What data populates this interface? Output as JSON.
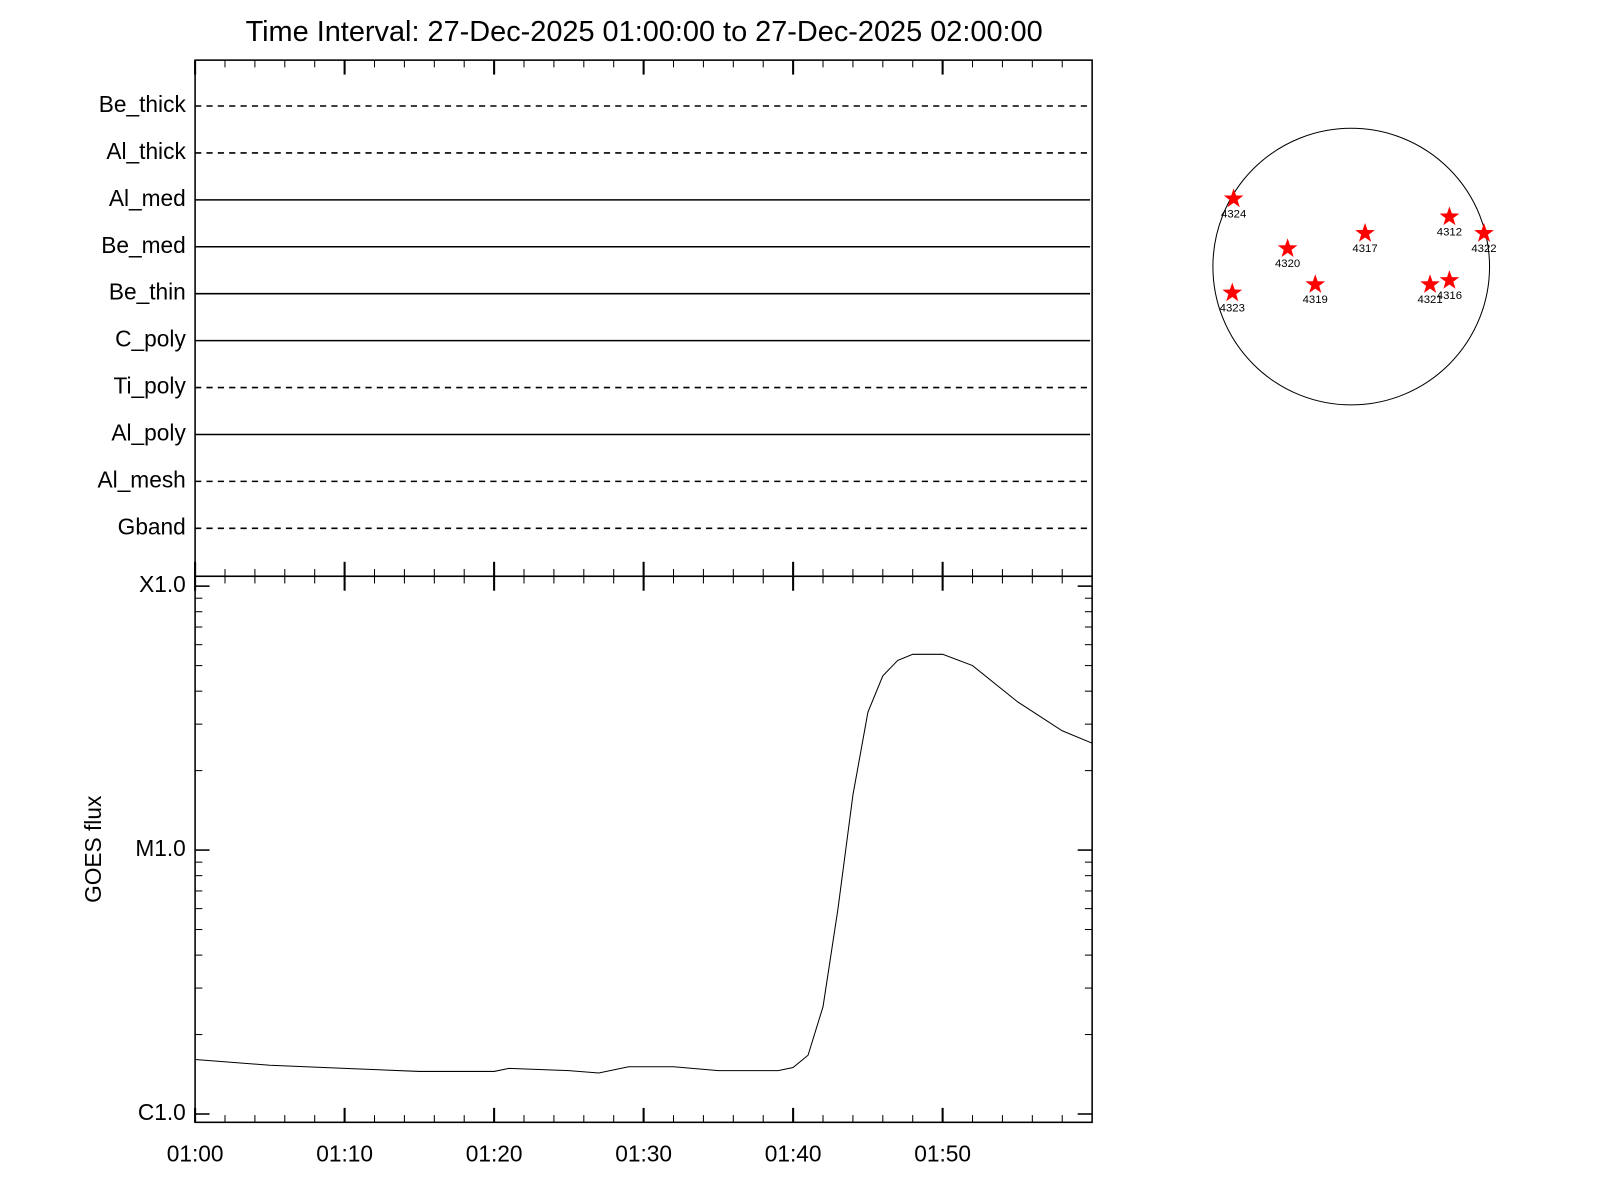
{
  "title": "Time Interval: 27-Dec-2025 01:00:00 to 27-Dec-2025 02:00:00",
  "chart_data": [
    {
      "type": "filters",
      "names": [
        "Be_thick",
        "Al_thick",
        "Al_med",
        "Be_med",
        "Be_thin",
        "C_poly",
        "Ti_poly",
        "Al_poly",
        "Al_mesh",
        "Gband"
      ],
      "dashed": [
        true,
        true,
        false,
        false,
        false,
        false,
        true,
        false,
        true,
        true
      ]
    },
    {
      "type": "line",
      "ylabel": "GOES flux",
      "log_y": true,
      "xlim": [
        0,
        60
      ],
      "xticks": [
        {
          "value": 0,
          "label": "01:00"
        },
        {
          "value": 10,
          "label": "01:10"
        },
        {
          "value": 20,
          "label": "01:20"
        },
        {
          "value": 30,
          "label": "01:30"
        },
        {
          "value": 40,
          "label": "01:40"
        },
        {
          "value": 50,
          "label": "01:50"
        }
      ],
      "ylim": [
        9.3e-07,
        0.000109
      ],
      "yticks": [
        {
          "value": 1e-06,
          "label": "C1.0"
        },
        {
          "value": 1e-05,
          "label": "M1.0"
        },
        {
          "value": 0.0001,
          "label": "X1.0"
        }
      ],
      "x": [
        0,
        5,
        10,
        15,
        20,
        21,
        25,
        27,
        29,
        32,
        35,
        39,
        40,
        41,
        42,
        43,
        44,
        45,
        46,
        47,
        48,
        50,
        52,
        55,
        58,
        60
      ],
      "series": [
        {
          "color": "#000000",
          "values": [
            1.61e-06,
            1.53e-06,
            1.49e-06,
            1.45e-06,
            1.45e-06,
            1.49e-06,
            1.46e-06,
            1.43e-06,
            1.51e-06,
            1.51e-06,
            1.46e-06,
            1.46e-06,
            1.5e-06,
            1.67e-06,
            2.55e-06,
            6e-06,
            1.62e-05,
            3.33e-05,
            4.57e-05,
            5.23e-05,
            5.52e-05,
            5.52e-05,
            5e-05,
            3.65e-05,
            2.83e-05,
            2.54e-05
          ]
        }
      ]
    },
    {
      "type": "disk",
      "color": "#ff0000",
      "labels": [
        "4324",
        "4320",
        "4317",
        "4312",
        "4322",
        "4323",
        "4319",
        "4321",
        "4316"
      ],
      "x": [
        -0.85,
        -0.46,
        0.1,
        0.71,
        0.96,
        -0.86,
        -0.26,
        0.57,
        0.71
      ],
      "y": [
        0.49,
        0.13,
        0.24,
        0.36,
        0.24,
        -0.19,
        -0.13,
        -0.13,
        -0.1
      ]
    }
  ]
}
